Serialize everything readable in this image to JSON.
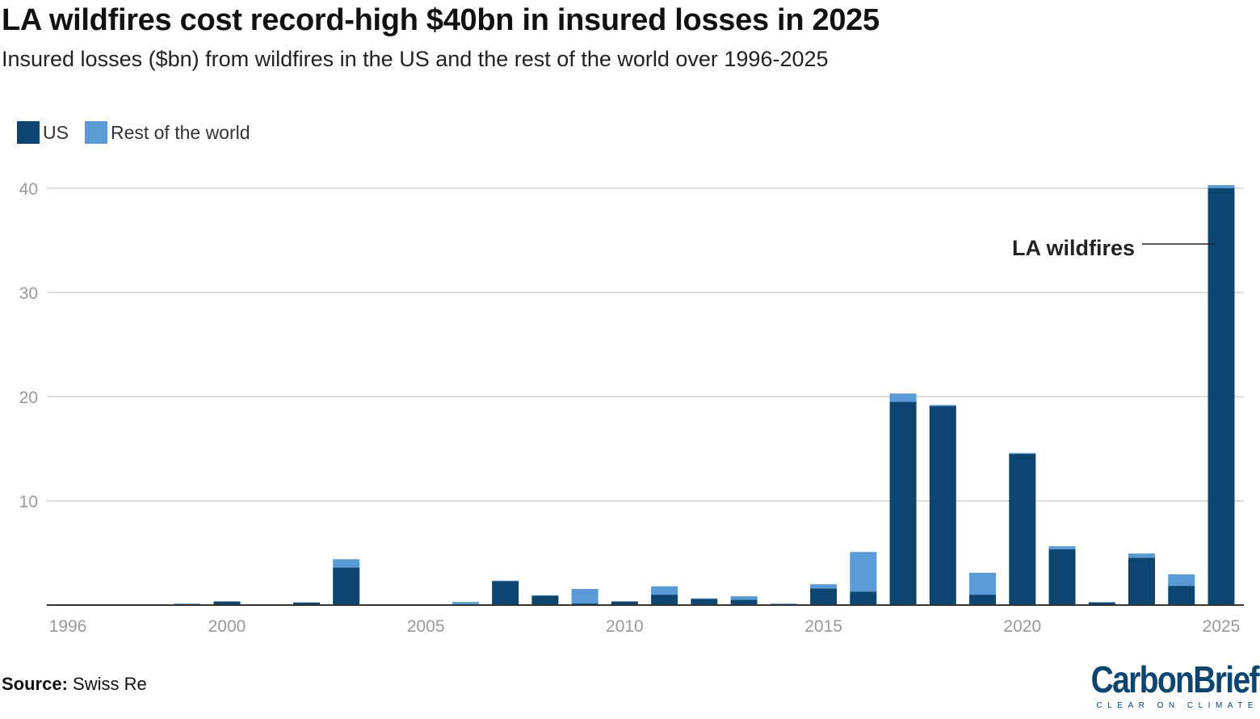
{
  "title": "LA wildfires cost record-high $40bn in insured losses in 2025",
  "subtitle": "Insured losses ($bn) from wildfires in the US and the rest of the world over 1996-2025",
  "source_label": "Source:",
  "source_value": "Swiss Re",
  "logo": {
    "name": "CarbonBrief",
    "tagline": "CLEAR ON CLIMATE"
  },
  "colors": {
    "us": "#0b4570",
    "rest_of_world": "#5b9bd5",
    "grid": "#dddddd",
    "axis": "#333333",
    "tick_text": "#999999"
  },
  "chart_data": {
    "type": "bar",
    "stacked": true,
    "title": "LA wildfires cost record-high $40bn in insured losses in 2025",
    "xlabel": "",
    "ylabel": "",
    "ylim": [
      0,
      40
    ],
    "yticks": [
      10,
      20,
      30,
      40
    ],
    "grid": true,
    "legend_placement": "top-left",
    "categories": [
      1996,
      1997,
      1998,
      1999,
      2000,
      2001,
      2002,
      2003,
      2004,
      2005,
      2006,
      2007,
      2008,
      2009,
      2010,
      2011,
      2012,
      2013,
      2014,
      2015,
      2016,
      2017,
      2018,
      2019,
      2020,
      2021,
      2022,
      2023,
      2024,
      2025
    ],
    "xtick_labels": [
      "1996",
      "2000",
      "2005",
      "2010",
      "2015",
      "2020",
      "2025"
    ],
    "series": [
      {
        "name": "US",
        "values": [
          0,
          0,
          0,
          0.05,
          0.35,
          0,
          0.25,
          3.6,
          0,
          0,
          0.05,
          2.3,
          0.9,
          0.15,
          0.35,
          1.0,
          0.6,
          0.5,
          0.1,
          1.6,
          1.3,
          19.5,
          19.1,
          1.0,
          14.5,
          5.35,
          0.25,
          4.55,
          1.85,
          40.0
        ]
      },
      {
        "name": "Rest of the world",
        "values": [
          0,
          0,
          0,
          0.1,
          0,
          0,
          0,
          0.8,
          0,
          0,
          0.25,
          0.05,
          0.05,
          1.4,
          0,
          0.8,
          0.05,
          0.35,
          0.05,
          0.4,
          3.8,
          0.8,
          0.1,
          2.1,
          0.1,
          0.3,
          0.05,
          0.4,
          1.1,
          0.3
        ]
      }
    ],
    "annotations": [
      {
        "text": "LA wildfires",
        "year": 2025
      }
    ]
  }
}
